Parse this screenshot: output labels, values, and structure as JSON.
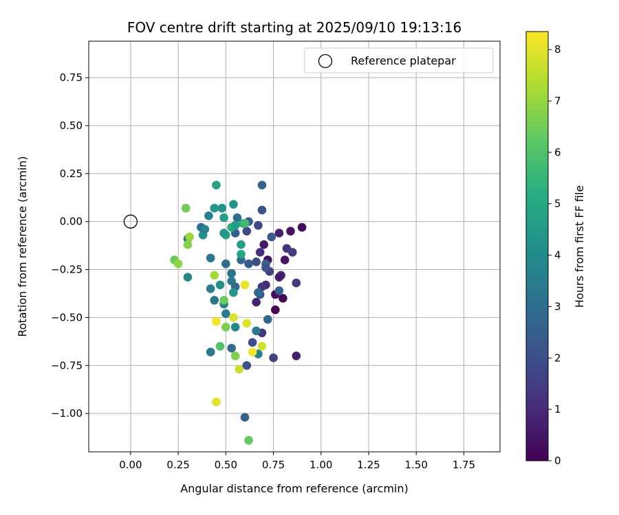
{
  "chart_data": {
    "type": "scatter",
    "title": "FOV centre drift starting at 2025/09/10 19:13:16",
    "xlabel": "Angular distance from reference (arcmin)",
    "ylabel": "Rotation from reference (arcmin)",
    "xlim": [
      -0.22,
      1.94
    ],
    "ylim": [
      -1.2,
      0.94
    ],
    "xticks": [
      0.0,
      0.25,
      0.5,
      0.75,
      1.0,
      1.25,
      1.5,
      1.75
    ],
    "xtick_labels": [
      "0.00",
      "0.25",
      "0.50",
      "0.75",
      "1.00",
      "1.25",
      "1.50",
      "1.75"
    ],
    "yticks": [
      0.75,
      0.5,
      0.25,
      0.0,
      -0.25,
      -0.5,
      -0.75,
      -1.0
    ],
    "ytick_labels": [
      "0.75",
      "0.50",
      "0.25",
      "0.00",
      "−0.25",
      "−0.50",
      "−0.75",
      "−1.00"
    ],
    "grid": true,
    "legend": {
      "position": "top-right",
      "entries": [
        {
          "label": "Reference platepar",
          "marker": "open-circle"
        }
      ]
    },
    "reference_point": {
      "x": 0.0,
      "y": 0.0
    },
    "colorbar": {
      "label": "Hours from first FF file",
      "colormap": "viridis",
      "range": [
        0,
        8.35
      ],
      "ticks": [
        0,
        1,
        2,
        3,
        4,
        5,
        6,
        7,
        8
      ],
      "tick_labels": [
        "0",
        "1",
        "2",
        "3",
        "4",
        "5",
        "6",
        "7",
        "8"
      ]
    },
    "points": [
      {
        "x": 0.9,
        "y": -0.03,
        "c": 0.2
      },
      {
        "x": 0.84,
        "y": -0.05,
        "c": 0.4
      },
      {
        "x": 0.78,
        "y": -0.06,
        "c": 0.7
      },
      {
        "x": 0.82,
        "y": -0.14,
        "c": 1.2
      },
      {
        "x": 0.85,
        "y": -0.16,
        "c": 1.5
      },
      {
        "x": 0.81,
        "y": -0.2,
        "c": 0.5
      },
      {
        "x": 0.72,
        "y": -0.2,
        "c": 0.3
      },
      {
        "x": 0.7,
        "y": -0.12,
        "c": 0.6
      },
      {
        "x": 0.68,
        "y": -0.16,
        "c": 1.1
      },
      {
        "x": 0.74,
        "y": -0.08,
        "c": 2.3
      },
      {
        "x": 0.67,
        "y": -0.02,
        "c": 1.8
      },
      {
        "x": 0.73,
        "y": -0.26,
        "c": 1.6
      },
      {
        "x": 0.79,
        "y": -0.28,
        "c": 0.9
      },
      {
        "x": 0.78,
        "y": -0.29,
        "c": 0.6
      },
      {
        "x": 0.87,
        "y": -0.32,
        "c": 1.4
      },
      {
        "x": 0.71,
        "y": -0.33,
        "c": 1.0
      },
      {
        "x": 0.69,
        "y": -0.34,
        "c": 1.3
      },
      {
        "x": 0.76,
        "y": -0.38,
        "c": 0.3
      },
      {
        "x": 0.8,
        "y": -0.4,
        "c": 0.2
      },
      {
        "x": 0.66,
        "y": -0.42,
        "c": 0.8
      },
      {
        "x": 0.76,
        "y": -0.46,
        "c": 0.1
      },
      {
        "x": 0.78,
        "y": -0.36,
        "c": 2.6
      },
      {
        "x": 0.68,
        "y": -0.38,
        "c": 2.2
      },
      {
        "x": 0.67,
        "y": -0.37,
        "c": 2.9
      },
      {
        "x": 0.72,
        "y": -0.51,
        "c": 2.8
      },
      {
        "x": 0.69,
        "y": -0.58,
        "c": 1.2
      },
      {
        "x": 0.75,
        "y": -0.71,
        "c": 1.7
      },
      {
        "x": 0.87,
        "y": -0.7,
        "c": 0.7
      },
      {
        "x": 0.67,
        "y": -0.69,
        "c": 3.6
      },
      {
        "x": 0.64,
        "y": -0.63,
        "c": 2.0
      },
      {
        "x": 0.66,
        "y": -0.57,
        "c": 3.3
      },
      {
        "x": 0.61,
        "y": -0.75,
        "c": 2.1
      },
      {
        "x": 0.6,
        "y": -1.02,
        "c": 2.5
      },
      {
        "x": 0.62,
        "y": -1.14,
        "c": 6.3
      },
      {
        "x": 0.69,
        "y": 0.19,
        "c": 2.7
      },
      {
        "x": 0.69,
        "y": 0.06,
        "c": 2.1
      },
      {
        "x": 0.62,
        "y": 0.0,
        "c": 2.4
      },
      {
        "x": 0.61,
        "y": -0.05,
        "c": 1.9
      },
      {
        "x": 0.56,
        "y": 0.02,
        "c": 3.0
      },
      {
        "x": 0.55,
        "y": -0.06,
        "c": 2.5
      },
      {
        "x": 0.58,
        "y": -0.2,
        "c": 2.8
      },
      {
        "x": 0.62,
        "y": -0.22,
        "c": 2.3
      },
      {
        "x": 0.66,
        "y": -0.21,
        "c": 2.0
      },
      {
        "x": 0.71,
        "y": -0.22,
        "c": 2.6
      },
      {
        "x": 0.71,
        "y": -0.24,
        "c": 2.1
      },
      {
        "x": 0.5,
        "y": -0.22,
        "c": 2.9
      },
      {
        "x": 0.53,
        "y": -0.27,
        "c": 3.1
      },
      {
        "x": 0.53,
        "y": -0.31,
        "c": 3.4
      },
      {
        "x": 0.55,
        "y": -0.34,
        "c": 2.9
      },
      {
        "x": 0.44,
        "y": -0.41,
        "c": 3.2
      },
      {
        "x": 0.42,
        "y": -0.35,
        "c": 3.6
      },
      {
        "x": 0.47,
        "y": -0.33,
        "c": 4.1
      },
      {
        "x": 0.54,
        "y": -0.37,
        "c": 4.4
      },
      {
        "x": 0.49,
        "y": -0.43,
        "c": 3.6
      },
      {
        "x": 0.5,
        "y": -0.48,
        "c": 3.5
      },
      {
        "x": 0.55,
        "y": -0.55,
        "c": 3.8
      },
      {
        "x": 0.53,
        "y": -0.66,
        "c": 3.0
      },
      {
        "x": 0.42,
        "y": -0.68,
        "c": 3.4
      },
      {
        "x": 0.42,
        "y": -0.19,
        "c": 3.3
      },
      {
        "x": 0.3,
        "y": -0.29,
        "c": 3.9
      },
      {
        "x": 0.3,
        "y": -0.09,
        "c": 3.3
      },
      {
        "x": 0.38,
        "y": -0.07,
        "c": 4.2
      },
      {
        "x": 0.37,
        "y": -0.03,
        "c": 3.0
      },
      {
        "x": 0.39,
        "y": -0.04,
        "c": 3.8
      },
      {
        "x": 0.41,
        "y": 0.03,
        "c": 3.7
      },
      {
        "x": 0.44,
        "y": 0.07,
        "c": 4.5
      },
      {
        "x": 0.48,
        "y": 0.07,
        "c": 4.3
      },
      {
        "x": 0.49,
        "y": 0.02,
        "c": 4.6
      },
      {
        "x": 0.5,
        "y": -0.07,
        "c": 4.8
      },
      {
        "x": 0.49,
        "y": -0.06,
        "c": 4.4
      },
      {
        "x": 0.53,
        "y": -0.03,
        "c": 5.2
      },
      {
        "x": 0.55,
        "y": -0.02,
        "c": 4.5
      },
      {
        "x": 0.54,
        "y": 0.09,
        "c": 4.3
      },
      {
        "x": 0.45,
        "y": 0.19,
        "c": 4.8
      },
      {
        "x": 0.59,
        "y": -0.01,
        "c": 5.0
      },
      {
        "x": 0.6,
        "y": -0.01,
        "c": 5.7
      },
      {
        "x": 0.58,
        "y": -0.12,
        "c": 4.7
      },
      {
        "x": 0.58,
        "y": -0.17,
        "c": 4.9
      },
      {
        "x": 0.29,
        "y": 0.07,
        "c": 6.5
      },
      {
        "x": 0.31,
        "y": -0.08,
        "c": 7.1
      },
      {
        "x": 0.3,
        "y": -0.12,
        "c": 6.8
      },
      {
        "x": 0.23,
        "y": -0.2,
        "c": 6.4
      },
      {
        "x": 0.25,
        "y": -0.22,
        "c": 6.9
      },
      {
        "x": 0.44,
        "y": -0.28,
        "c": 7.2
      },
      {
        "x": 0.49,
        "y": -0.41,
        "c": 6.4
      },
      {
        "x": 0.5,
        "y": -0.55,
        "c": 6.6
      },
      {
        "x": 0.47,
        "y": -0.65,
        "c": 6.0
      },
      {
        "x": 0.55,
        "y": -0.7,
        "c": 6.7
      },
      {
        "x": 0.6,
        "y": -0.33,
        "c": 8.1
      },
      {
        "x": 0.45,
        "y": -0.52,
        "c": 8.2
      },
      {
        "x": 0.54,
        "y": -0.5,
        "c": 7.9
      },
      {
        "x": 0.61,
        "y": -0.53,
        "c": 8.0
      },
      {
        "x": 0.69,
        "y": -0.65,
        "c": 7.8
      },
      {
        "x": 0.64,
        "y": -0.68,
        "c": 8.2
      },
      {
        "x": 0.57,
        "y": -0.77,
        "c": 7.7
      },
      {
        "x": 0.45,
        "y": -0.94,
        "c": 8.0
      }
    ]
  }
}
